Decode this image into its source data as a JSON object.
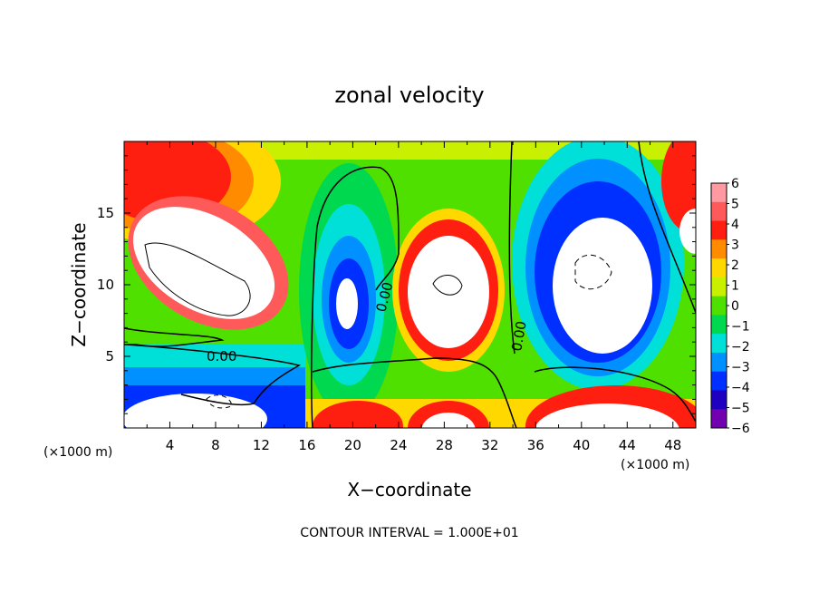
{
  "chart_data": {
    "type": "heatmap",
    "title": "zonal velocity",
    "xlabel": "X−coordinate",
    "ylabel": "Z−coordinate",
    "x_unit": "(×1000 m)",
    "x_unit_right": "(×1000 m)",
    "xlim": [
      0,
      50
    ],
    "ylim": [
      0,
      20
    ],
    "x_ticks": [
      "4",
      "8",
      "12",
      "16",
      "20",
      "24",
      "28",
      "32",
      "36",
      "40",
      "44",
      "48"
    ],
    "y_ticks": [
      "5",
      "10",
      "15"
    ],
    "contour_labels": [
      "0.00",
      "0.00",
      "0.00"
    ],
    "footer": "CONTOUR INTERVAL = 1.000E+01",
    "colorbar": {
      "labels": [
        "6",
        "5",
        "4",
        "3",
        "2",
        "1",
        "0",
        "−1",
        "−2",
        "−3",
        "−4",
        "−5",
        "−6"
      ],
      "colors": [
        "#ff9aa2",
        "#ff5a5a",
        "#ff1f10",
        "#ff8c00",
        "#ffd800",
        "#c8f000",
        "#50e000",
        "#00d850",
        "#00e0d8",
        "#0090ff",
        "#0030ff",
        "#2000c0",
        "#7000b0"
      ]
    }
  }
}
